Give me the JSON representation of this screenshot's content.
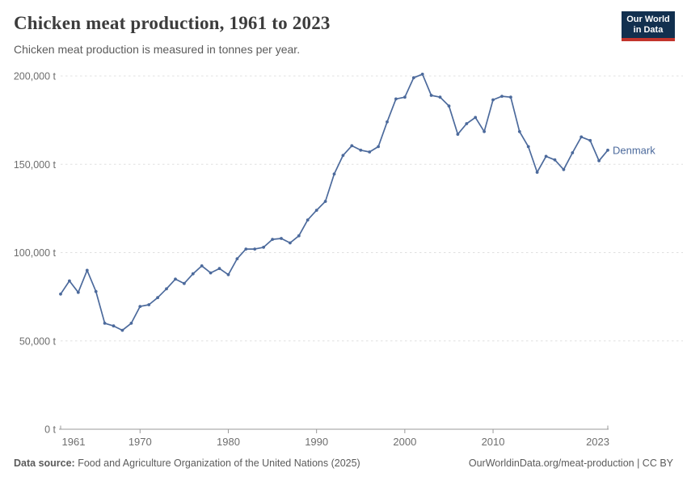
{
  "header": {
    "title": "Chicken meat production, 1961 to 2023",
    "subtitle": "Chicken meat production is measured in tonnes per year.",
    "logo": {
      "line1": "Our World",
      "line2": "in Data"
    }
  },
  "chart_data": {
    "type": "line",
    "title": "Chicken meat production, 1961 to 2023",
    "xlabel": "",
    "ylabel": "",
    "unit": "t",
    "xlim": [
      1961,
      2023
    ],
    "ylim": [
      0,
      200000
    ],
    "grid": "horizontal-dashed",
    "legend_position": "end-of-line-label",
    "y_ticks": [
      {
        "value": 0,
        "label": "0 t"
      },
      {
        "value": 50000,
        "label": "50,000 t"
      },
      {
        "value": 100000,
        "label": "100,000 t"
      },
      {
        "value": 150000,
        "label": "150,000 t"
      },
      {
        "value": 200000,
        "label": "200,000 t"
      }
    ],
    "x_ticks": [
      {
        "year": 1961,
        "label": "1961",
        "align": "start"
      },
      {
        "year": 1970,
        "label": "1970",
        "align": "middle"
      },
      {
        "year": 1980,
        "label": "1980",
        "align": "middle"
      },
      {
        "year": 1990,
        "label": "1990",
        "align": "middle"
      },
      {
        "year": 2000,
        "label": "2000",
        "align": "middle"
      },
      {
        "year": 2010,
        "label": "2010",
        "align": "middle"
      },
      {
        "year": 2023,
        "label": "2023",
        "align": "end"
      }
    ],
    "series": [
      {
        "name": "Denmark",
        "color": "#4C6A9C",
        "x": [
          1961,
          1962,
          1963,
          1964,
          1965,
          1966,
          1967,
          1968,
          1969,
          1970,
          1971,
          1972,
          1973,
          1974,
          1975,
          1976,
          1977,
          1978,
          1979,
          1980,
          1981,
          1982,
          1983,
          1984,
          1985,
          1986,
          1987,
          1988,
          1989,
          1990,
          1991,
          1992,
          1993,
          1994,
          1995,
          1996,
          1997,
          1998,
          1999,
          2000,
          2001,
          2002,
          2003,
          2004,
          2005,
          2006,
          2007,
          2008,
          2009,
          2010,
          2011,
          2012,
          2013,
          2014,
          2015,
          2016,
          2017,
          2018,
          2019,
          2020,
          2021,
          2022,
          2023
        ],
        "values": [
          76500,
          84000,
          77500,
          90000,
          78000,
          60000,
          58500,
          56000,
          60000,
          69500,
          70500,
          74500,
          79500,
          85000,
          82500,
          88000,
          92500,
          88500,
          91000,
          87500,
          96500,
          102000,
          102000,
          103000,
          107500,
          108000,
          105500,
          109500,
          118500,
          124000,
          129000,
          144500,
          155000,
          160500,
          158000,
          157000,
          160000,
          174000,
          187000,
          188000,
          199000,
          201000,
          189000,
          188000,
          183000,
          167000,
          173000,
          176500,
          168500,
          186500,
          188500,
          188000,
          168500,
          160000,
          145500,
          154500,
          152500,
          147000,
          156500,
          165500,
          163500,
          152000,
          158000
        ]
      }
    ]
  },
  "footer": {
    "source_label": "Data source:",
    "source_text": " Food and Agriculture Organization of the United Nations (2025)",
    "credit": "OurWorldinData.org/meat-production | CC BY"
  },
  "colors": {
    "line": "#4C6A9C",
    "grid": "#e0e0e0",
    "axis": "#999999",
    "tick_label": "#6e6e6e",
    "title": "#3c3c3c",
    "subtitle": "#5b5b5b",
    "footer": "#5b5b5b",
    "logo_bg": "#12304f",
    "logo_accent": "#c2342c"
  }
}
